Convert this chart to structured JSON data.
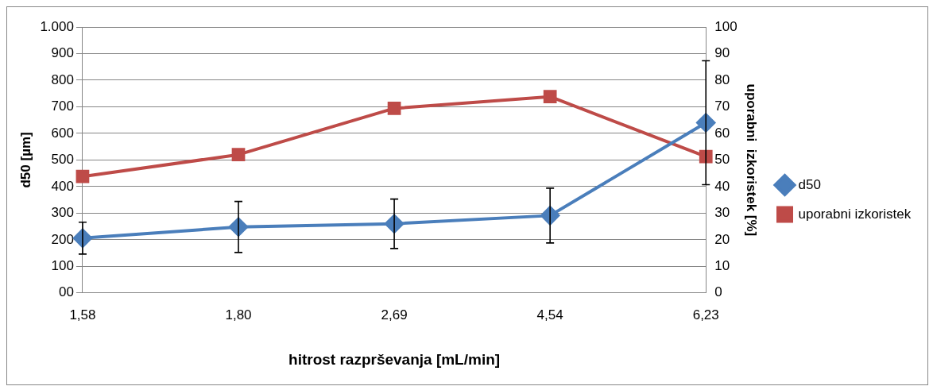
{
  "chart_data": {
    "type": "line",
    "xlabel": "hitrost razprševanja [mL/min]",
    "ylabel": "d50 [µm]",
    "y2label": "uporabni  izkoristek [%]",
    "categories": [
      "1,58",
      "1,80",
      "2,69",
      "4,54",
      "6,23"
    ],
    "series": [
      {
        "name": "d50",
        "color": "#4a7ebb",
        "marker": "diamond",
        "values": [
          206,
          248,
          260,
          291,
          640
        ],
        "errors": [
          60,
          96,
          93,
          103,
          233
        ]
      },
      {
        "name": "uporabni izkoristek",
        "color": "#be4b48",
        "marker": "square",
        "axis": "y2",
        "values": [
          43.8,
          52,
          69.4,
          73.8,
          51.3
        ]
      }
    ],
    "ylim": [
      0,
      1000
    ],
    "yticks": [
      {
        "value": 0,
        "label": "00"
      },
      100,
      200,
      300,
      400,
      500,
      600,
      700,
      800,
      900,
      {
        "value": 1000,
        "label": "1.000"
      }
    ],
    "y2lim": [
      0,
      100
    ],
    "y2ticks": [
      0,
      10,
      20,
      30,
      40,
      50,
      60,
      70,
      80,
      90,
      100
    ],
    "grid": "y",
    "legend": "right",
    "line_style": "solid"
  }
}
